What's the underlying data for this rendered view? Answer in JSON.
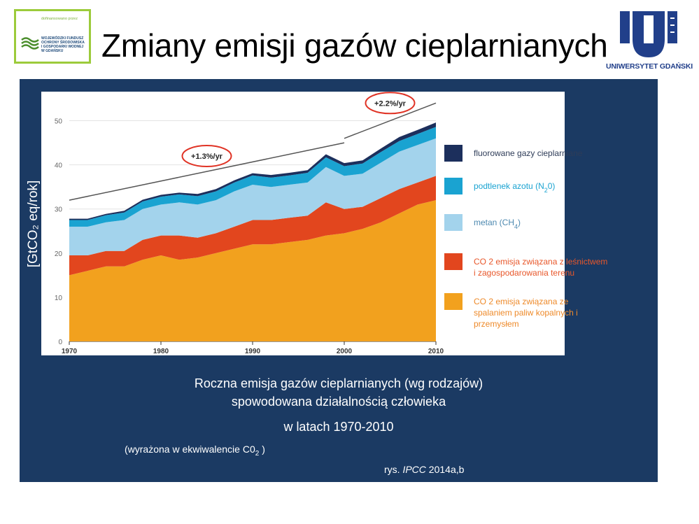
{
  "slide": {
    "title": "Zmiany emisji gazów cieplarnianych",
    "ylabel": "[GtCO₂ eq/rok]",
    "caption_line1": "Roczna emisja gazów cieplarnianych (wg rodzajów)",
    "caption_line2": "spowodowana działalnością człowieka",
    "caption_line3": "w latach 1970-2010",
    "note_prefix": "(wyrażona  w ekwiwalencie  C0",
    "note_sub": "2",
    "note_suffix": " )",
    "source_prefix": "rys. ",
    "source_italic": "IPCC",
    "source_suffix": " 2014a,b"
  },
  "logo_left": {
    "small_text": "dofinansowano przez",
    "text": "WOJEWÓDZKI FUNDUSZ\nOCHRONY ŚRODOWISKA\nI GOSPODARKI WODNEJ\nW GDAŃSKU"
  },
  "logo_right": {
    "text": "UNIWERSYTET GDAŃSKI",
    "color": "#213f8a"
  },
  "colors": {
    "panel": "#1b3a63",
    "fossil": "#f2a11e",
    "forestry": "#e2461e",
    "methane": "#a3d3ec",
    "n2o": "#1aa3d1",
    "fgas": "#1c2f5c",
    "annotation_ring": "#e03325"
  },
  "chart_data": {
    "type": "area",
    "title": "",
    "xlabel": "",
    "ylabel": "[GtCO₂ eq/rok]",
    "x": [
      1970,
      1972,
      1974,
      1976,
      1978,
      1980,
      1982,
      1984,
      1986,
      1988,
      1990,
      1992,
      1994,
      1996,
      1998,
      2000,
      2002,
      2004,
      2006,
      2008,
      2010
    ],
    "xticks": [
      1970,
      1980,
      1990,
      2000,
      2010
    ],
    "yticks": [
      0,
      10,
      20,
      30,
      40,
      50
    ],
    "xlim": [
      1970,
      2010
    ],
    "ylim": [
      0,
      55
    ],
    "series": [
      {
        "name": "CO 2  emisja związana ze spalaniem paliw kopalnych i przemysłem",
        "color": "#f2a11e",
        "values": [
          15,
          16,
          17,
          17,
          18.5,
          19.5,
          18.5,
          19,
          20,
          21,
          22,
          22,
          22.5,
          23,
          24,
          24.5,
          25.5,
          27,
          29,
          31,
          32
        ]
      },
      {
        "name": "CO 2  emisja związana z leśnictwem i  zagospodarowania terenu",
        "color": "#e2461e",
        "values": [
          4.5,
          3.5,
          3.5,
          3.5,
          4.5,
          4.5,
          5.5,
          4.5,
          4.5,
          5,
          5.5,
          5.5,
          5.5,
          5.5,
          7.5,
          5.5,
          5,
          5.5,
          5.5,
          5,
          5.5
        ]
      },
      {
        "name": "metan (CH4)",
        "color": "#a3d3ec",
        "values": [
          6.5,
          6.5,
          6.5,
          7,
          7,
          7,
          7.5,
          7.5,
          7.5,
          8,
          8,
          7.5,
          7.5,
          7.5,
          8,
          7.5,
          7.5,
          8,
          8.5,
          8.5,
          8.5
        ]
      },
      {
        "name": "podtlenek azotu (N20)",
        "color": "#1aa3d1",
        "values": [
          1.5,
          1.5,
          1.6,
          1.7,
          1.7,
          1.8,
          1.8,
          1.9,
          2,
          2,
          2.1,
          2.1,
          2.1,
          2.2,
          2.2,
          2.2,
          2.3,
          2.4,
          2.4,
          2.5,
          2.6
        ]
      },
      {
        "name": "fluorowane gazy cieplarniane",
        "color": "#1c2f5c",
        "values": [
          0.3,
          0.3,
          0.3,
          0.4,
          0.4,
          0.4,
          0.4,
          0.5,
          0.5,
          0.5,
          0.5,
          0.6,
          0.6,
          0.6,
          0.7,
          0.7,
          0.7,
          0.8,
          0.9,
          0.9,
          1
        ]
      }
    ],
    "legend_order": [
      4,
      3,
      2,
      1,
      0
    ],
    "legend": [
      {
        "label": "fluorowane gazy cieplarniane",
        "color": "#1c2f5c",
        "text_color": "#2e3c58"
      },
      {
        "label": "podtlenek azotu (N",
        "sub": "2",
        "label_after": "0)",
        "color": "#1aa3d1",
        "text_color": "#1aa3d1"
      },
      {
        "label": "metan (CH",
        "sub": "4",
        "label_after": ")",
        "color": "#a3d3ec",
        "text_color": "#4d89b0"
      },
      {
        "label": "CO 2  emisja związana z leśnictwem",
        "label2": "i  zagospodarowania terenu",
        "color": "#e2461e",
        "text_color": "#e8572a"
      },
      {
        "label": "CO 2  emisja związana ze",
        "label2": "spalaniem paliw kopalnych i",
        "label3": "przemysłem",
        "color": "#f2a11e",
        "text_color": "#ee8a2a"
      }
    ],
    "annotations": [
      {
        "text": "+1.3%/yr",
        "x": 1985,
        "y": 42,
        "trend": {
          "from": [
            1970,
            32
          ],
          "to": [
            2000,
            45
          ]
        }
      },
      {
        "text": "+2.2%/yr",
        "x": 2005,
        "y": 54,
        "trend": {
          "from": [
            2000,
            46
          ],
          "to": [
            2010,
            54
          ]
        }
      }
    ]
  }
}
